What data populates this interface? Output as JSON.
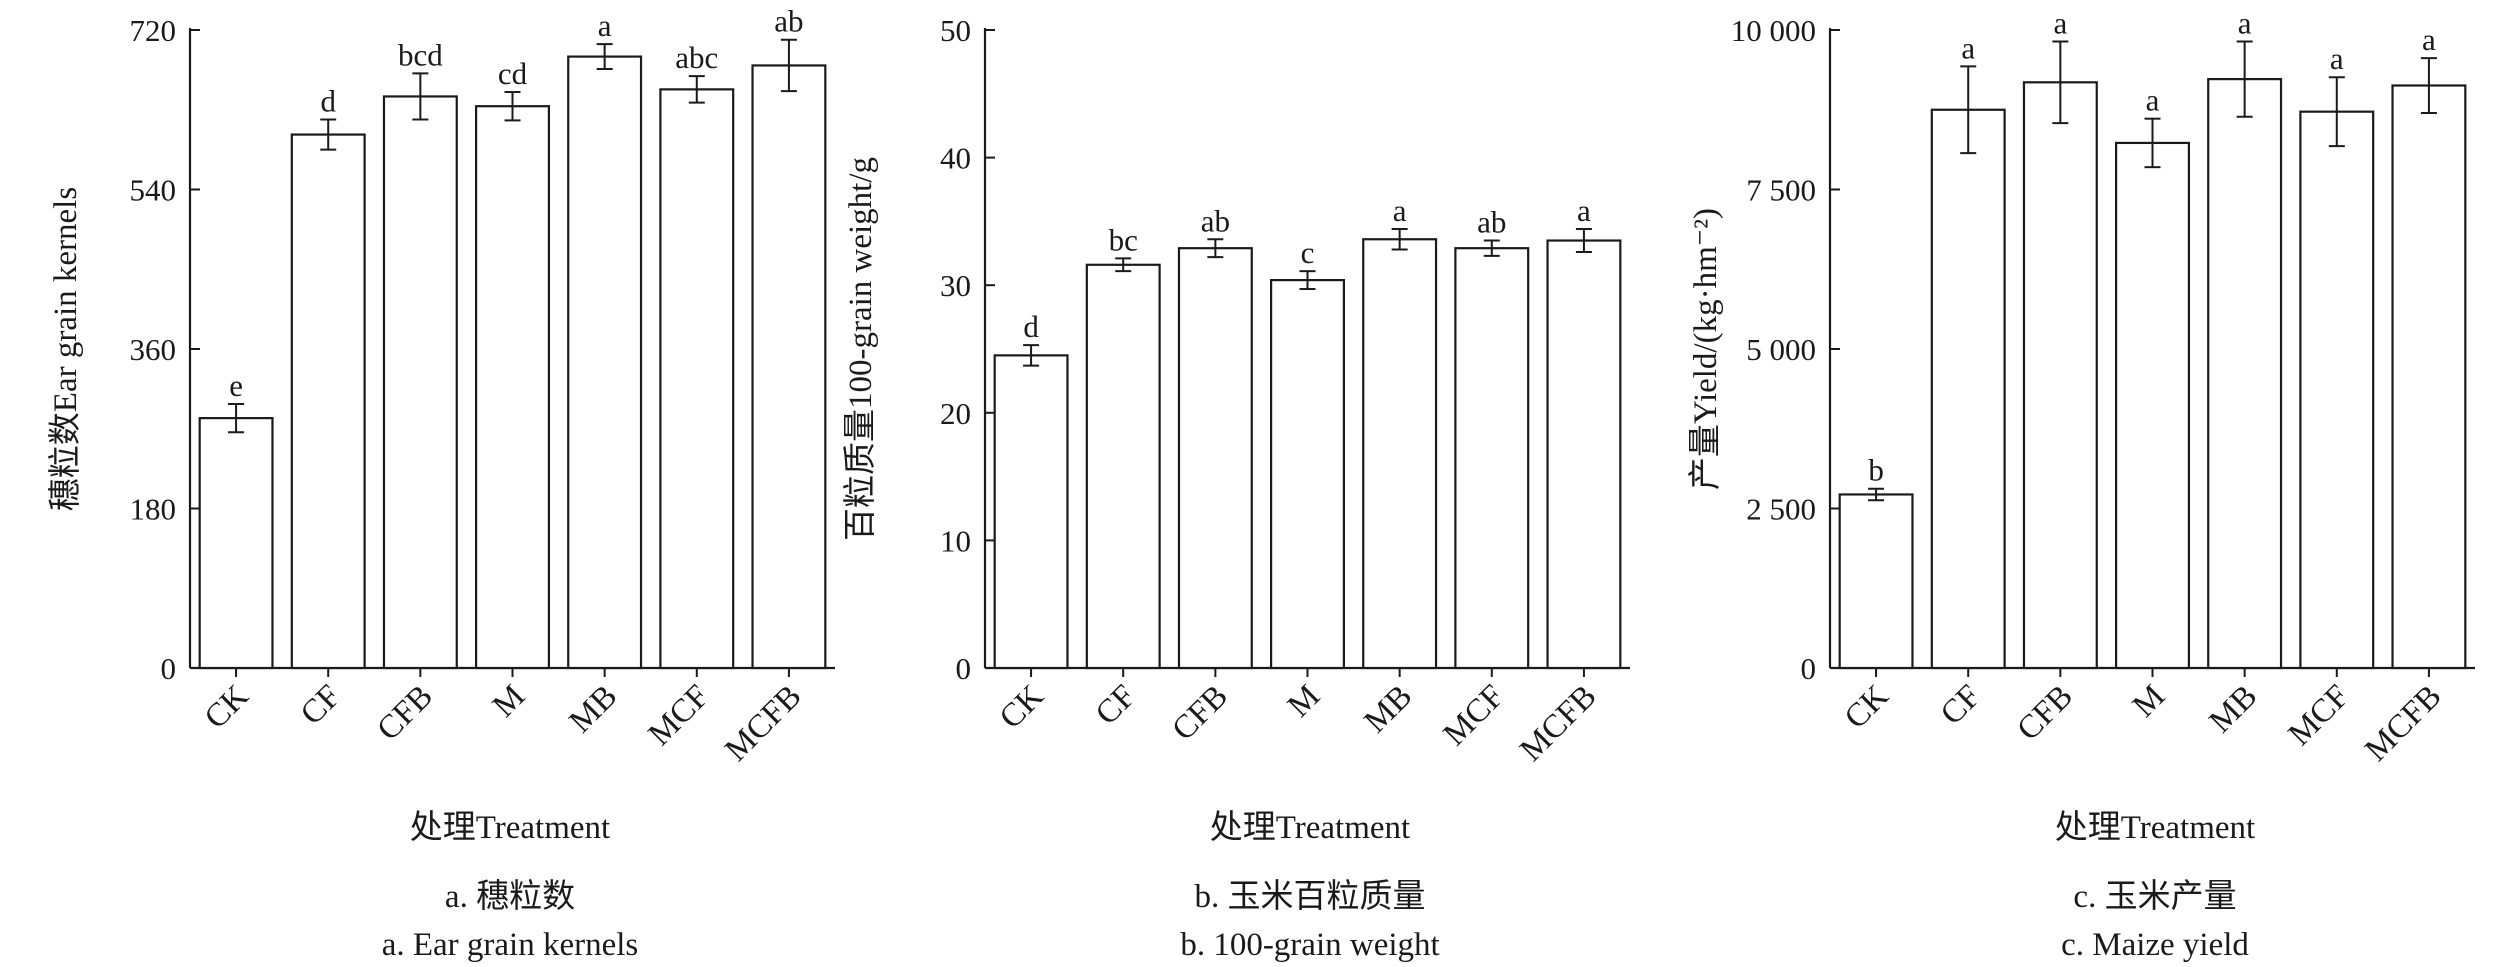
{
  "chart_data": [
    {
      "type": "bar",
      "caption_cn": "a. 穗粒数",
      "caption_en": "a. Ear grain kernels",
      "xlabel": "处理Treatment",
      "ylabel": "穗粒数Ear grain kernels",
      "categories": [
        "CK",
        "CF",
        "CFB",
        "M",
        "MB",
        "MCF",
        "MCFB"
      ],
      "values": [
        282,
        602,
        645,
        634,
        690,
        653,
        680
      ],
      "errors": [
        16,
        17,
        26,
        16,
        14,
        15,
        29
      ],
      "significance": [
        "e",
        "d",
        "bcd",
        "cd",
        "a",
        "abc",
        "ab"
      ],
      "ylim": [
        0,
        720
      ],
      "yticks": [
        0,
        180,
        360,
        540,
        720
      ],
      "ytick_labels": [
        "0",
        "180",
        "360",
        "540",
        "720"
      ],
      "grid": false
    },
    {
      "type": "bar",
      "caption_cn": "b. 玉米百粒质量",
      "caption_en": "b. 100-grain weight",
      "xlabel": "处理Treatment",
      "ylabel": "百粒质量100-grain weight/g",
      "categories": [
        "CK",
        "CF",
        "CFB",
        "M",
        "MB",
        "MCF",
        "MCFB"
      ],
      "values": [
        24.5,
        31.6,
        32.9,
        30.4,
        33.6,
        32.9,
        33.5
      ],
      "errors": [
        0.8,
        0.5,
        0.7,
        0.7,
        0.8,
        0.6,
        0.9
      ],
      "significance": [
        "d",
        "bc",
        "ab",
        "c",
        "a",
        "ab",
        "a"
      ],
      "ylim": [
        0,
        50
      ],
      "yticks": [
        0,
        10,
        20,
        30,
        40,
        50
      ],
      "ytick_labels": [
        "0",
        "10",
        "20",
        "30",
        "40",
        "50"
      ],
      "grid": false
    },
    {
      "type": "bar",
      "caption_cn": "c. 玉米产量",
      "caption_en": "c. Maize yield",
      "xlabel": "处理Treatment",
      "ylabel": "产量Yield/(kg·hm⁻²)",
      "categories": [
        "CK",
        "CF",
        "CFB",
        "M",
        "MB",
        "MCF",
        "MCFB"
      ],
      "values": [
        2720,
        8750,
        9180,
        8230,
        9230,
        8720,
        9130
      ],
      "errors": [
        90,
        680,
        640,
        380,
        590,
        540,
        430
      ],
      "significance": [
        "b",
        "a",
        "a",
        "a",
        "a",
        "a",
        "a"
      ],
      "ylim": [
        0,
        10000
      ],
      "yticks": [
        0,
        2500,
        5000,
        7500,
        10000
      ],
      "ytick_labels": [
        "0",
        "2 500",
        "5 000",
        "7 500",
        "10 000"
      ],
      "grid": false
    }
  ]
}
